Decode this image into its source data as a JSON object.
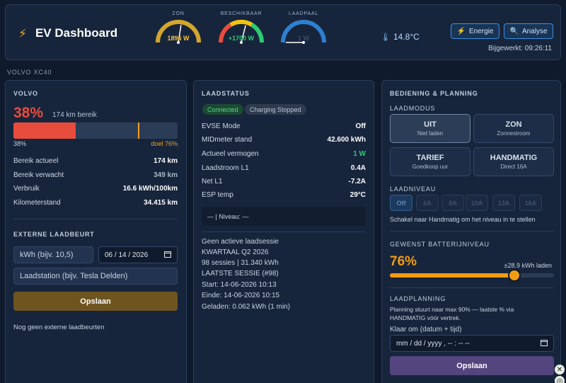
{
  "header": {
    "title": "EV Dashboard",
    "temperature": "14.8°C",
    "buttons": {
      "energy": "Energie",
      "analysis": "Analyse"
    },
    "updated": "Bijgewerkt: 09:26:11",
    "gauges": [
      {
        "label": "ZON",
        "value": "1896 W",
        "color": "#d4a72c",
        "value_color": "#f5c542",
        "fraction": 0.55
      },
      {
        "label": "BESCHIKBAAR",
        "value": "+1700 W",
        "color_left": "#e74c3c",
        "color_mid": "#f1c40f",
        "color_right": "#2ecc71",
        "value_color": "#2ecc71",
        "fraction": 0.58
      },
      {
        "label": "LAADPAAL",
        "value": "1 W",
        "color": "#2f7fd0",
        "value_color": "#3c4b60",
        "fraction": 0.0
      }
    ]
  },
  "car_label": "VOLVO XC40",
  "volvo": {
    "title": "VOLVO",
    "soc": "38%",
    "soc_fraction": 0.38,
    "target_fraction": 0.76,
    "range_text": "174 km bereik",
    "soc_small": "38%",
    "target_text": "doel 76%",
    "rows": [
      {
        "k": "Bereik actueel",
        "v": "174 km"
      },
      {
        "k": "Bereik verwacht",
        "v": "349 km"
      },
      {
        "k": "Verbruik",
        "v": "16.6 kWh/100km"
      },
      {
        "k": "Kilometerstand",
        "v": "34.415 km"
      }
    ]
  },
  "external": {
    "title": "EXTERNE LAADBEURT",
    "kwh_placeholder": "kWh (bijv. 10,5)",
    "date_value": "06 / 14 / 2026",
    "station_placeholder": "Laadstation (bijv. Tesla Delden)",
    "save_label": "Opslaan",
    "empty_text": "Nog geen externe laadbeurten"
  },
  "status": {
    "title": "LAADSTATUS",
    "badge_connected": "Connected",
    "badge_state": "Charging Stopped",
    "rows": [
      {
        "k": "EVSE Mode",
        "v": "Off"
      },
      {
        "k": "MIDmeter stand",
        "v": "42.600 kWh"
      },
      {
        "k": "Actueel vermogen",
        "v": "1 W"
      },
      {
        "k": "Laadstroom L1",
        "v": "0.4A"
      },
      {
        "k": "Net L1",
        "v": "-7.2A"
      },
      {
        "k": "ESP temp",
        "v": "29°C"
      }
    ],
    "niveau": "— | Niveau: —",
    "session_lines": [
      "Geen actieve laadsessie",
      "KWARTAAL Q2 2026",
      "98 sessies | 31.340 kWh",
      "LAATSTE SESSIE (#98)",
      "Start: 14-06-2026 10:13",
      "Einde: 14-06-2026 10:15",
      "Geladen: 0.062 kWh (1 min)"
    ]
  },
  "control": {
    "title": "BEDIENING & PLANNING",
    "mode_title": "LAADMODUS",
    "modes": [
      {
        "name": "UIT",
        "sub": "Niet laden"
      },
      {
        "name": "ZON",
        "sub": "Zonnestroom"
      },
      {
        "name": "TARIEF",
        "sub": "Goedkoop uur"
      },
      {
        "name": "HANDMATIG",
        "sub": "Direct 16A"
      }
    ],
    "level_title": "LAADNIVEAU",
    "levels": [
      "Off",
      "6A",
      "8A",
      "10A",
      "13A",
      "16A"
    ],
    "level_hint": "Schakel naar Handmatig om het niveau in te stellen",
    "battery_title": "GEWENST BATTERIJNIVEAU",
    "battery_value": "76%",
    "battery_fraction": 0.76,
    "battery_extra": "±28.9 kWh laden",
    "planning_title": "LAADPLANNING",
    "planning_note_1": "Planning stuurt naar max 90% — laatste % via",
    "planning_note_2": "HANDMATIG vóór vertrek.",
    "ready_label": "Klaar om (datum + tijd)",
    "datetime_value": "mm / dd / yyyy ,  -- : --   --",
    "save_label": "Opslaan"
  }
}
